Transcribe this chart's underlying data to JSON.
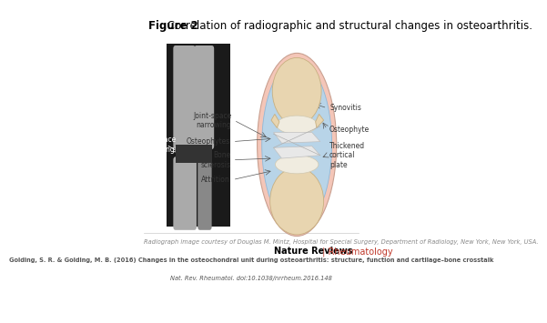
{
  "title_bold": "Figure 2",
  "title_regular": " Correlation of radiographic and structural changes in osteoarthritis.",
  "title_fontsize": 8.5,
  "nature_reviews_bold": "Nature Reviews",
  "nature_reviews_color": "#000000",
  "rheumatology_text": " | Rheumatology",
  "rheumatology_color": "#c0392b",
  "nature_reviews_fontsize": 7,
  "footer_courtesy": "Radiograph image courtesy of Douglas M. Mintz, Hospital for Special Surgery, Department of Radiology, New York, New York, USA.",
  "footer_citation_bold": "Golding, S. R. & Golding, M. B. (2016) Changes in the osteochondral unit during osteoarthritis: structure, function and cartilage–bone crosstalk",
  "footer_citation_italic": "Nat. Rev. Rheumatol.",
  "footer_citation_end": " doi:10.1038/nrrheum.2016.148",
  "footer_fontsize": 5.0,
  "bg_color": "#ffffff"
}
